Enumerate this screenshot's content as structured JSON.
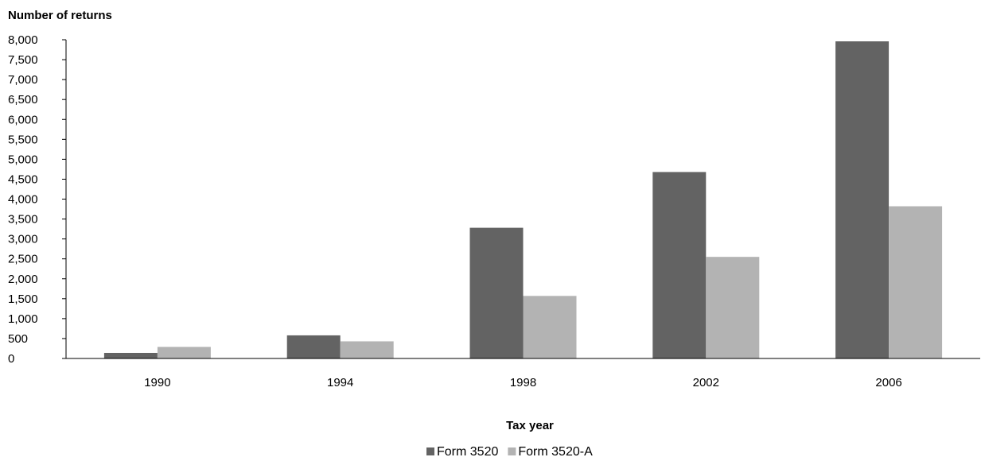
{
  "chart_data": {
    "type": "bar",
    "ylabel": "Number of returns",
    "xlabel": "Tax year",
    "categories": [
      "1990",
      "1994",
      "1998",
      "2002",
      "2006"
    ],
    "series": [
      {
        "name": "Form 3520",
        "color": "#636363",
        "values": [
          140,
          580,
          3280,
          4680,
          7960
        ]
      },
      {
        "name": "Form 3520-A",
        "color": "#b3b3b3",
        "values": [
          290,
          430,
          1570,
          2550,
          3820
        ]
      }
    ],
    "ylim": [
      0,
      8000
    ],
    "yticks": [
      0,
      500,
      1000,
      1500,
      2000,
      2500,
      3000,
      3500,
      4000,
      4500,
      5000,
      5500,
      6000,
      6500,
      7000,
      7500,
      8000
    ],
    "ytick_labels": [
      "0",
      "500",
      "1,000",
      "1,500",
      "2,000",
      "2,500",
      "3,000",
      "3,500",
      "4,000",
      "4,500",
      "5,000",
      "5,500",
      "6,000",
      "6,500",
      "7,000",
      "7,500",
      "8,000"
    ],
    "grid": false,
    "legend_position": "bottom"
  }
}
